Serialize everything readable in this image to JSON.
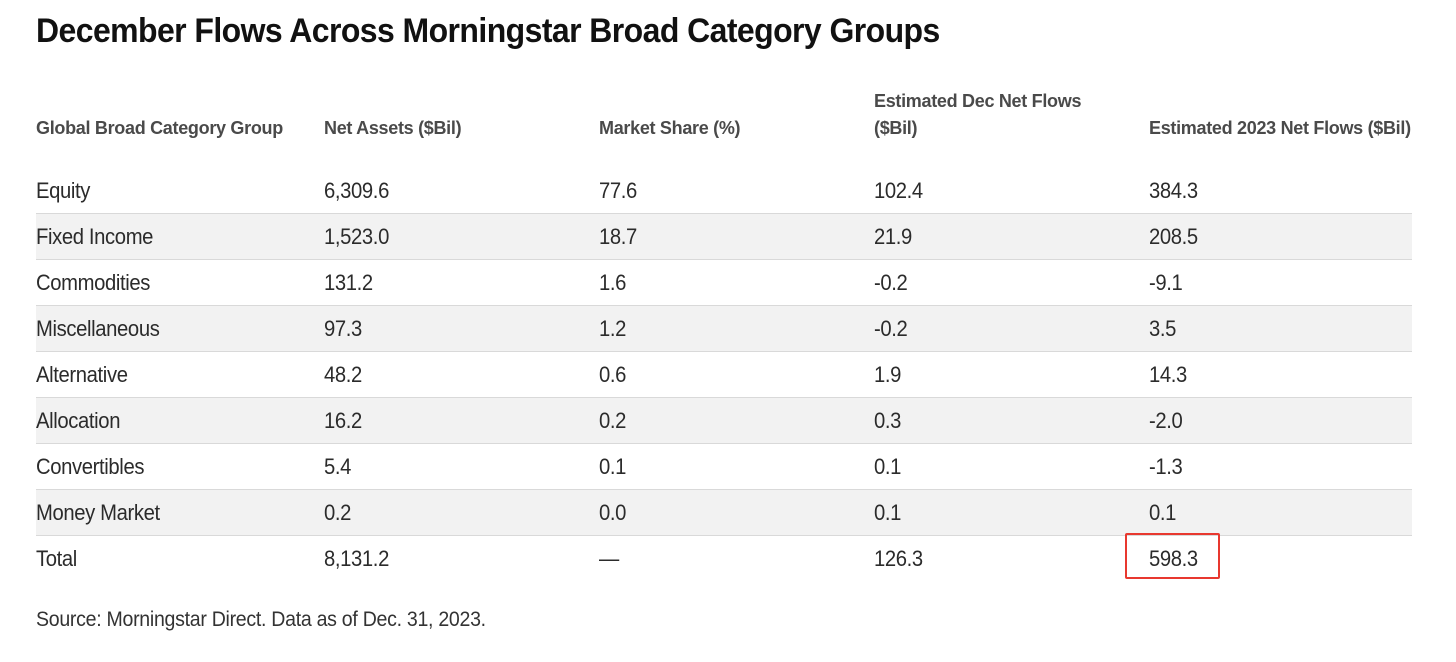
{
  "title": "December Flows Across Morningstar Broad Category Groups",
  "table": {
    "headers": [
      [
        "Global Broad Category Group"
      ],
      [
        "Net Assets ($Bil)"
      ],
      [
        "Market Share (%)"
      ],
      [
        "Estimated Dec Net Flows",
        "($Bil)"
      ],
      [
        "Estimated 2023 Net Flows ($Bil)"
      ]
    ],
    "rows": [
      [
        "Equity",
        "6,309.6",
        "77.6",
        "102.4",
        "384.3"
      ],
      [
        "Fixed Income",
        "1,523.0",
        "18.7",
        "21.9",
        "208.5"
      ],
      [
        "Commodities",
        "131.2",
        "1.6",
        "-0.2",
        "-9.1"
      ],
      [
        "Miscellaneous",
        "97.3",
        "1.2",
        "-0.2",
        "3.5"
      ],
      [
        "Alternative",
        "48.2",
        "0.6",
        "1.9",
        "14.3"
      ],
      [
        "Allocation",
        "16.2",
        "0.2",
        "0.3",
        "-2.0"
      ],
      [
        "Convertibles",
        "5.4",
        "0.1",
        "0.1",
        "-1.3"
      ],
      [
        "Money Market",
        "0.2",
        "0.0",
        "0.1",
        "0.1"
      ],
      [
        "Total",
        "8,131.2",
        "—",
        "126.3",
        "598.3"
      ]
    ],
    "highlighted_cell": "598.3",
    "highlight_color": "#e8382f",
    "stripe_color": "#f2f2f2"
  },
  "source": "Source: Morningstar Direct. Data as of Dec. 31, 2023."
}
